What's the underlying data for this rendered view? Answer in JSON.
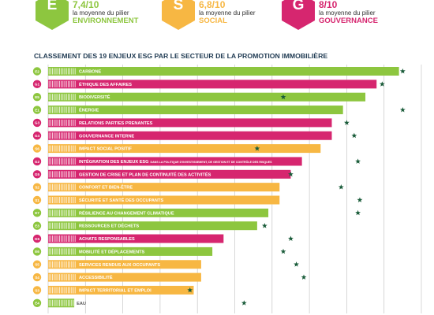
{
  "colors": {
    "environnement": "#8dc63f",
    "social": "#f7b743",
    "gouvernance": "#d6266f",
    "star": "#1a5c3a",
    "grid": "#c7c7c7"
  },
  "pillars": [
    {
      "letter": "E",
      "score": "7,4/10",
      "desc": "la moyenne du pilier",
      "name": "ENVIRONNEMENT",
      "color": "#8dc63f"
    },
    {
      "letter": "S",
      "score": "6,8/10",
      "desc": "la moyenne du pilier",
      "name": "SOCIAL",
      "color": "#f7b743"
    },
    {
      "letter": "G",
      "score": "8/10",
      "desc": "la moyenne du pilier",
      "name": "GOUVERNANCE",
      "color": "#d6266f"
    }
  ],
  "chart_data": {
    "type": "bar",
    "orientation": "horizontal",
    "title": "CLASSEMENT DES 19 ENJEUX ESG PAR LE SECTEUR DE LA PROMOTION IMMOBILIÈRE",
    "xlim": [
      0,
      10
    ],
    "categories": [
      {
        "code": "E2",
        "label": "CARBONE",
        "pillar": "environnement",
        "value": 9.4,
        "star": 9.5
      },
      {
        "code": "G1",
        "label": "ÉTHIQUE DES AFFAIRES",
        "pillar": "gouvernance",
        "value": 8.8,
        "star": 8.95
      },
      {
        "code": "E5",
        "label": "BIODIVERSITÉ",
        "pillar": "environnement",
        "value": 8.5,
        "star": 6.3
      },
      {
        "code": "E1",
        "label": "ÉNERGIE",
        "pillar": "environnement",
        "value": 7.9,
        "star": 9.5
      },
      {
        "code": "G3",
        "label": "RELATIONS PARTIES PRENANTES",
        "pillar": "gouvernance",
        "value": 7.6,
        "star": 8.0
      },
      {
        "code": "G4",
        "label": "GOUVERNANCE INTERNE",
        "pillar": "gouvernance",
        "value": 7.6,
        "star": 8.2
      },
      {
        "code": "S6",
        "label": "IMPACT SOCIAL POSITIF",
        "pillar": "social",
        "value": 7.3,
        "star": 5.6
      },
      {
        "code": "G2",
        "label": "INTÉGRATION DES ENJEUX ESG",
        "label_suffix": "DANS LA POLITIQUE D'INVESTISSEMENT, DE GESTION ET DE CONTRÔLE DES RISQUES",
        "pillar": "gouvernance",
        "value": 6.8,
        "star": 8.3
      },
      {
        "code": "G5",
        "label": "GESTION DE CRISE ET PLAN DE CONTINUITÉ DES ACTIVITÉS",
        "pillar": "gouvernance",
        "value": 6.5,
        "star": 6.5
      },
      {
        "code": "S2",
        "label": "CONFORT ET BIEN-ÊTRE",
        "pillar": "social",
        "value": 6.2,
        "star": 7.85
      },
      {
        "code": "S1",
        "label": "SÉCURITÉ ET SANTÉ DES OCCUPANTS",
        "pillar": "social",
        "value": 6.2,
        "star": 8.35
      },
      {
        "code": "E7",
        "label": "RÉSILIENCE AU CHANGEMENT CLIMATIQUE",
        "pillar": "environnement",
        "value": 5.9,
        "star": 8.3
      },
      {
        "code": "E3",
        "label": "RESSOURCES ET DÉCHETS",
        "pillar": "environnement",
        "value": 5.6,
        "star": 5.8
      },
      {
        "code": "G5",
        "label": "ACHATS RESPONSABLES",
        "pillar": "gouvernance",
        "value": 4.7,
        "star": 6.5
      },
      {
        "code": "E6",
        "label": "MOBILITÉ ET DÉPLACEMENTS",
        "pillar": "environnement",
        "value": 4.4,
        "star": 6.3
      },
      {
        "code": "S5",
        "label": "SERVICES RENDUS AUX OCCUPANTS",
        "pillar": "social",
        "value": 4.1,
        "star": 6.65
      },
      {
        "code": "S4",
        "label": "ACCESSIBILITÉ",
        "pillar": "social",
        "value": 4.1,
        "star": 6.85
      },
      {
        "code": "S3",
        "label": "IMPACT TERRITORIAL ET EMPLOI",
        "pillar": "social",
        "value": 3.9,
        "star": 3.8
      },
      {
        "code": "E4",
        "label": "EAU",
        "pillar": "environnement",
        "value": 0.7,
        "star": 5.25
      }
    ]
  }
}
